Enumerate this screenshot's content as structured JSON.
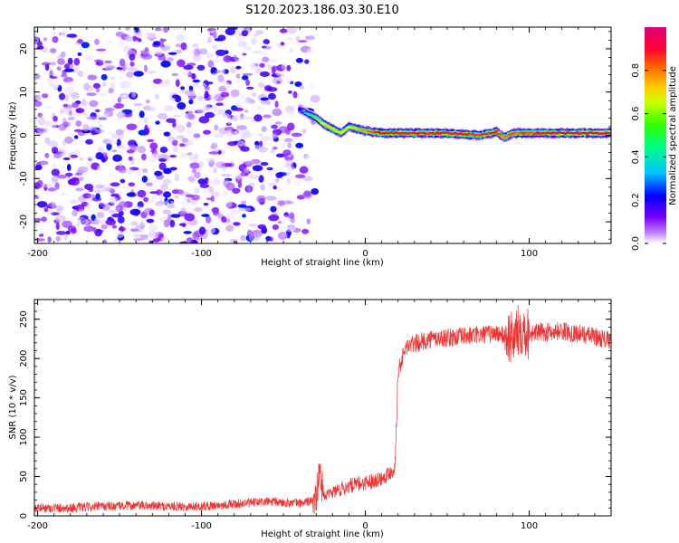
{
  "title": "S120.2023.186.03.30.E10",
  "chart_data": [
    {
      "type": "heatmap",
      "title": "S120.2023.186.03.30.E10",
      "xlabel": "Height of straight line (km)",
      "ylabel": "Frequency (Hz)",
      "xlim": [
        -202,
        150
      ],
      "ylim": [
        -25,
        25
      ],
      "xticks": [
        -200,
        -100,
        0,
        100
      ],
      "xtick_labels": [
        "-200",
        "-100",
        "0",
        "100"
      ],
      "yticks": [
        -20,
        -10,
        0,
        10,
        20
      ],
      "ytick_labels": [
        "-20",
        "-10",
        "0",
        "10",
        "20"
      ],
      "colorbar": {
        "label": "Normalized spectral amplitude",
        "range": [
          0,
          1
        ],
        "ticks": [
          0,
          0.2,
          0.4,
          0.6,
          0.8
        ],
        "tick_labels": [
          "0.0",
          "0.2",
          "0.4",
          "0.6",
          "0.8"
        ],
        "colormap": [
          "#f0f0f8",
          "#7a00ff",
          "#0000ff",
          "#00e8ff",
          "#00ff00",
          "#ffff00",
          "#ff8000",
          "#ff0040",
          "#e0007a"
        ]
      },
      "noise_region_x": [
        -202,
        -40
      ],
      "ridge": {
        "x": [
          -40,
          -35,
          -30,
          -25,
          -20,
          -15,
          -10,
          -5,
          0,
          10,
          30,
          50,
          70,
          80,
          85,
          90,
          100,
          120,
          150
        ],
        "freq": [
          6,
          5,
          4,
          2.5,
          1.5,
          0.5,
          2,
          1.5,
          1,
          0.5,
          0.5,
          0.5,
          0,
          0.8,
          -0.5,
          0.5,
          0.5,
          0.5,
          0.5
        ],
        "amplitude": [
          0.3,
          0.45,
          0.6,
          0.7,
          0.75,
          0.7,
          0.7,
          0.75,
          0.8,
          0.9,
          0.88,
          0.9,
          0.85,
          0.9,
          0.8,
          0.85,
          0.85,
          0.95,
          0.95
        ]
      },
      "grid": false
    },
    {
      "type": "line",
      "xlabel": "Height of straight line (km)",
      "ylabel": "SNR (10 * v/v)",
      "xlim": [
        -202,
        150
      ],
      "ylim": [
        0,
        275
      ],
      "xticks": [
        -200,
        -100,
        0,
        100
      ],
      "xtick_labels": [
        "-200",
        "-100",
        "0",
        "100"
      ],
      "yticks": [
        0,
        50,
        100,
        150,
        200,
        250
      ],
      "ytick_labels": [
        "0",
        "50",
        "100",
        "150",
        "200",
        "250"
      ],
      "series_color": "#ee3333",
      "series": [
        {
          "x": [
            -202,
            -180,
            -160,
            -140,
            -120,
            -100,
            -80,
            -60,
            -40,
            -30,
            -28,
            -25,
            -20,
            -10,
            0,
            10,
            15,
            18,
            20,
            25,
            40,
            60,
            80,
            90,
            95,
            100,
            120,
            140,
            150
          ],
          "y": [
            10,
            10,
            12,
            13,
            12,
            12,
            15,
            18,
            16,
            20,
            55,
            25,
            30,
            38,
            42,
            48,
            55,
            60,
            185,
            215,
            225,
            228,
            232,
            225,
            240,
            232,
            235,
            228,
            222
          ]
        }
      ],
      "grid": false
    }
  ]
}
